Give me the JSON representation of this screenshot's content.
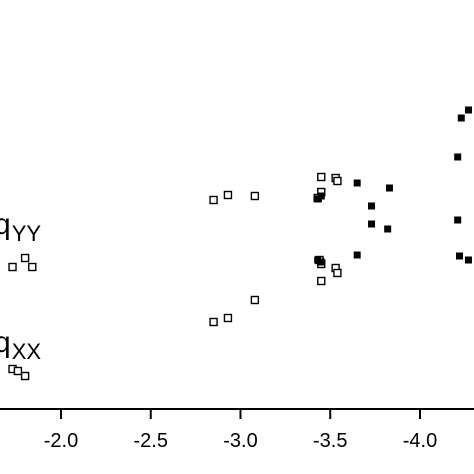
{
  "chart_data": {
    "type": "scatter",
    "x_ticks": [
      "-2.0",
      "-2.5",
      "-3.0",
      "-3.5",
      "-4.0"
    ],
    "x_tick_values": [
      -2.0,
      -2.5,
      -3.0,
      -3.5,
      -4.0
    ],
    "xlim": [
      -1.65,
      -4.3
    ],
    "ylim": [
      0,
      474
    ],
    "grid": false,
    "labels": [
      {
        "base": "q",
        "sub": "YY"
      },
      {
        "base": "q",
        "sub": "XX"
      }
    ],
    "series": [
      {
        "marker": "open-square",
        "points": [
          [
            -1.8,
            258
          ],
          [
            -1.84,
            267
          ],
          [
            -1.73,
            267
          ],
          [
            -1.73,
            369
          ],
          [
            -1.76,
            371
          ],
          [
            -1.8,
            376
          ],
          [
            -2.85,
            200
          ],
          [
            -2.93,
            195
          ],
          [
            -3.08,
            196
          ],
          [
            -2.85,
            322
          ],
          [
            -2.93,
            318
          ],
          [
            -3.08,
            300
          ],
          [
            -3.45,
            177
          ],
          [
            -3.45,
            192
          ],
          [
            -3.43,
            198
          ],
          [
            -3.53,
            178
          ],
          [
            -3.54,
            181
          ],
          [
            -3.44,
            260
          ],
          [
            -3.45,
            264
          ],
          [
            -3.53,
            268
          ],
          [
            -3.54,
            273
          ],
          [
            -3.45,
            281
          ]
        ]
      },
      {
        "marker": "filled-square",
        "points": [
          [
            -3.43,
            199
          ],
          [
            -3.45,
            196
          ],
          [
            -3.43,
            260
          ],
          [
            -3.45,
            262
          ],
          [
            -3.65,
            183
          ],
          [
            -3.73,
            206
          ],
          [
            -3.83,
            188
          ],
          [
            -3.73,
            224
          ],
          [
            -3.82,
            229
          ],
          [
            -3.65,
            255
          ],
          [
            -4.21,
            157
          ],
          [
            -4.23,
            118
          ],
          [
            -4.27,
            110
          ],
          [
            -4.21,
            220
          ],
          [
            -4.22,
            256
          ],
          [
            -4.27,
            260
          ]
        ]
      }
    ]
  }
}
